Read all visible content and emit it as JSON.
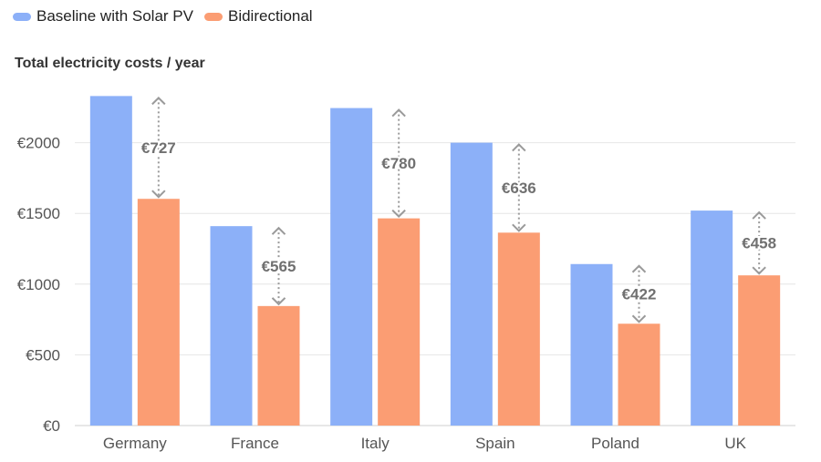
{
  "chart_data": {
    "type": "bar",
    "title": "Total electricity costs / year",
    "categories": [
      "Germany",
      "France",
      "Italy",
      "Spain",
      "Poland",
      "UK"
    ],
    "series": [
      {
        "name": "Baseline with Solar PV",
        "color": "#8cb0f8",
        "values": [
          2330,
          1410,
          2245,
          2000,
          1142,
          1520
        ]
      },
      {
        "name": "Bidirectional",
        "color": "#fb9d73",
        "values": [
          1603,
          845,
          1465,
          1364,
          720,
          1062
        ]
      }
    ],
    "differences": [
      "€727",
      "€565",
      "€780",
      "€636",
      "€422",
      "€458"
    ],
    "yticks": [
      "€0",
      "€500",
      "€1000",
      "€1500",
      "€2000"
    ],
    "ytick_values": [
      0,
      500,
      1000,
      1500,
      2000
    ],
    "ylim": [
      0,
      2330
    ],
    "legend_position": "top-left",
    "grid": true
  }
}
